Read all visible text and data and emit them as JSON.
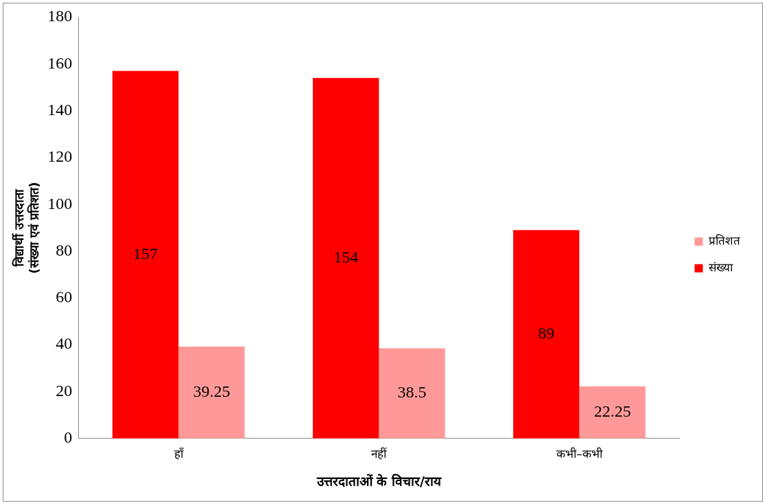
{
  "chart_data": {
    "type": "bar",
    "xlabel": "उत्तरदाताओं के विचार/राय",
    "ylabel": "विद्यार्थी उत्तरदाता\n(संख्या एवं प्रतिशत)",
    "categories": [
      "हाँ",
      "नहीं",
      "कभी–कभी"
    ],
    "series": [
      {
        "name": "संख्या",
        "color": "#ff0000",
        "values": [
          157,
          154,
          89
        ]
      },
      {
        "name": "प्रतिशत",
        "color": "#ff9999",
        "values": [
          39.25,
          38.5,
          22.25
        ]
      }
    ],
    "ylim": [
      0,
      180
    ],
    "yticks": [
      0,
      20,
      40,
      60,
      80,
      100,
      120,
      140,
      160,
      180
    ],
    "grid": false,
    "legend": "right",
    "data_labels": true
  }
}
